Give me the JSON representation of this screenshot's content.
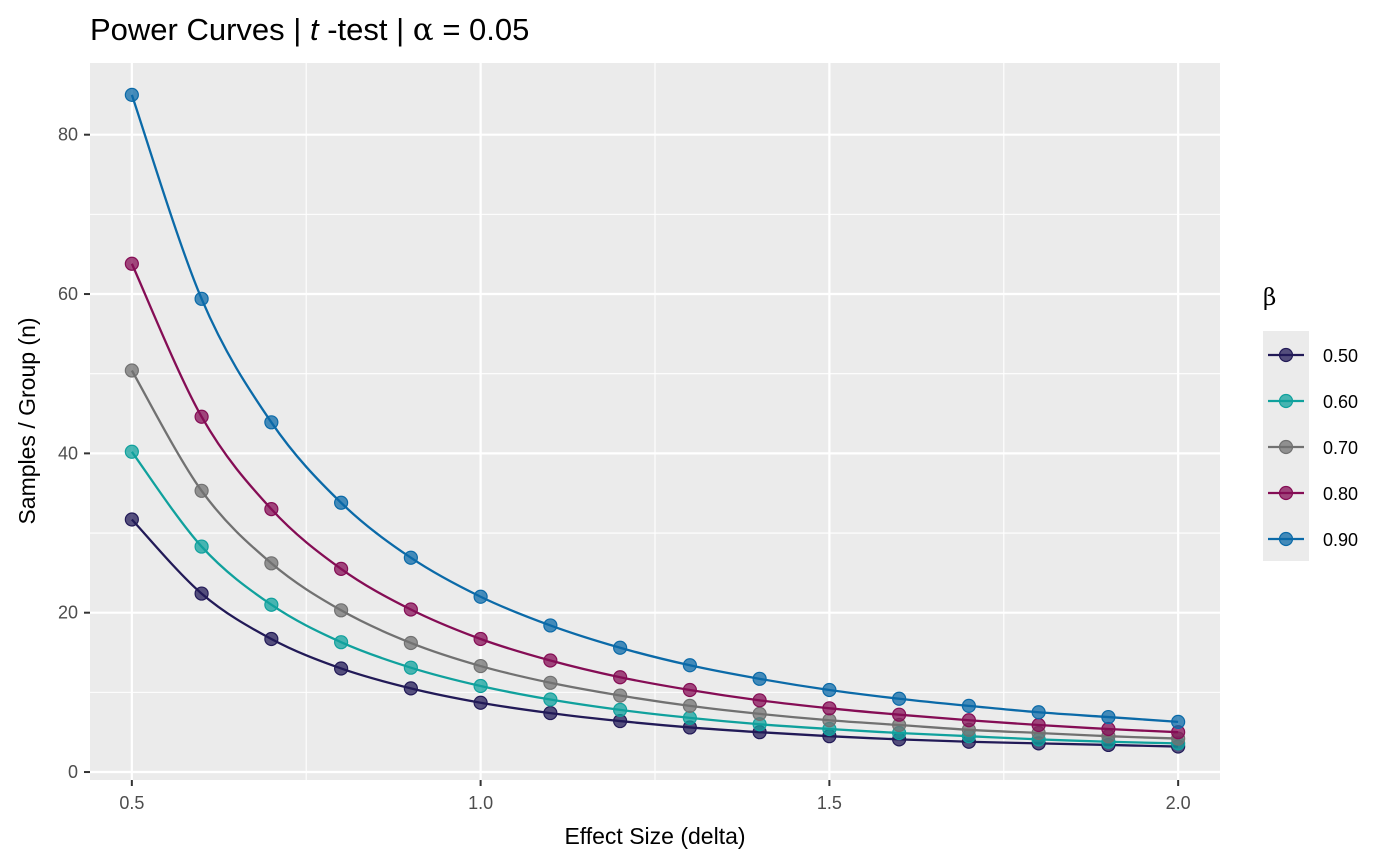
{
  "chart_data": {
    "type": "line",
    "title": {
      "prefix": "Power Curves |  ",
      "italic": "t",
      "middle": " -test |  ",
      "greek": "α",
      "suffix": " = 0.05"
    },
    "xlabel": "Effect Size (delta)",
    "ylabel": "Samples / Group (n)",
    "xlim": [
      0.44,
      2.06
    ],
    "ylim": [
      -1,
      89
    ],
    "x_ticks": [
      0.5,
      1.0,
      1.5,
      2.0
    ],
    "x_tick_labels": [
      "0.5",
      "1.0",
      "1.5",
      "2.0"
    ],
    "y_ticks": [
      0,
      20,
      40,
      60,
      80
    ],
    "y_tick_labels": [
      "0",
      "20",
      "40",
      "60",
      "80"
    ],
    "grid": true,
    "legend": {
      "title": "β",
      "placement": "right"
    },
    "x": [
      0.5,
      0.6,
      0.7,
      0.8,
      0.9,
      1.0,
      1.1,
      1.2,
      1.3,
      1.4,
      1.5,
      1.6,
      1.7,
      1.8,
      1.9,
      2.0
    ],
    "series": [
      {
        "name": "0.50",
        "color": "#221a57",
        "values": [
          31.7,
          22.4,
          16.7,
          13.0,
          10.5,
          8.7,
          7.4,
          6.4,
          5.6,
          5.0,
          4.5,
          4.1,
          3.8,
          3.6,
          3.4,
          3.2
        ]
      },
      {
        "name": "0.60",
        "color": "#10a19d",
        "values": [
          40.2,
          28.3,
          21.0,
          16.3,
          13.1,
          10.8,
          9.1,
          7.8,
          6.8,
          6.0,
          5.4,
          4.9,
          4.5,
          4.1,
          3.8,
          3.6
        ]
      },
      {
        "name": "0.70",
        "color": "#717171",
        "values": [
          50.4,
          35.3,
          26.2,
          20.3,
          16.2,
          13.3,
          11.2,
          9.6,
          8.3,
          7.3,
          6.5,
          5.9,
          5.3,
          4.9,
          4.5,
          4.2
        ]
      },
      {
        "name": "0.80",
        "color": "#850d55",
        "values": [
          63.8,
          44.6,
          33.0,
          25.5,
          20.4,
          16.7,
          14.0,
          11.9,
          10.3,
          9.0,
          8.0,
          7.2,
          6.5,
          5.9,
          5.4,
          5.0
        ]
      },
      {
        "name": "0.90",
        "color": "#0b6aa8",
        "values": [
          85.0,
          59.4,
          43.9,
          33.8,
          26.9,
          22.0,
          18.4,
          15.6,
          13.4,
          11.7,
          10.3,
          9.2,
          8.3,
          7.5,
          6.9,
          6.3
        ]
      }
    ]
  }
}
